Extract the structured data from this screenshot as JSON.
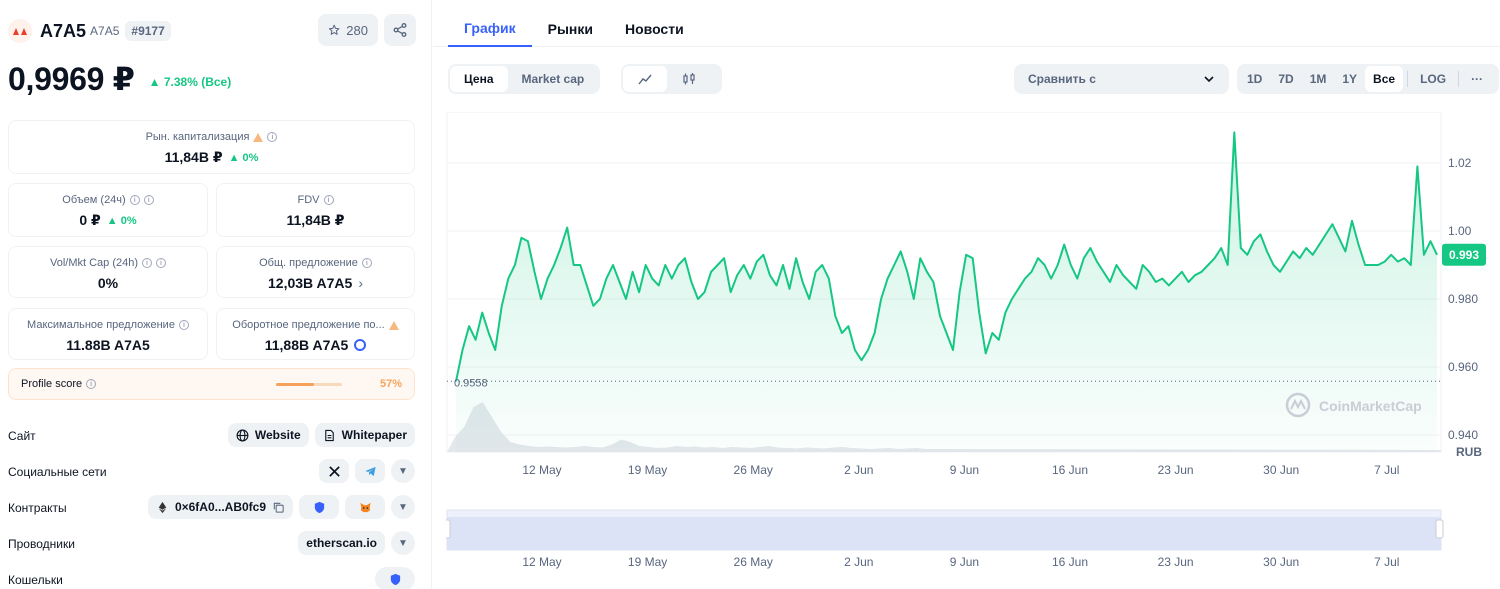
{
  "coin": {
    "name": "A7A5",
    "symbol": "A7A5",
    "rank": "#9177",
    "watch_count": "280",
    "price": "0,9969 ₽",
    "price_change": "7.38% (Все)"
  },
  "stats": {
    "market_cap": {
      "label": "Рын. капитализация",
      "value": "11,84B ₽",
      "change": "0%"
    },
    "volume": {
      "label": "Объем (24ч)",
      "value": "0 ₽",
      "change": "0%"
    },
    "fdv": {
      "label": "FDV",
      "value": "11,84B ₽"
    },
    "vol_mkt": {
      "label": "Vol/Mkt Cap (24h)",
      "value": "0%"
    },
    "total_supply": {
      "label": "Общ. предложение",
      "value": "12,03B A7A5"
    },
    "max_supply": {
      "label": "Максимальное предложение",
      "value": "11.88B A7A5"
    },
    "circulating": {
      "label": "Оборотное предложение по...",
      "value": "11,88B A7A5"
    }
  },
  "profile": {
    "label": "Profile score",
    "value": "57%",
    "fraction": 0.57
  },
  "links": {
    "site": {
      "label": "Сайт",
      "website": "Website",
      "whitepaper": "Whitepaper"
    },
    "social": {
      "label": "Социальные сети"
    },
    "contracts": {
      "label": "Контракты",
      "address": "0×6fA0...AB0fc9"
    },
    "explorers": {
      "label": "Проводники",
      "value": "etherscan.io"
    },
    "wallets": {
      "label": "Кошельки"
    }
  },
  "tabs": [
    "График",
    "Рынки",
    "Новости"
  ],
  "chart_toggle": {
    "price": "Цена",
    "market_cap": "Market cap"
  },
  "compare": {
    "placeholder": "Сравнить с"
  },
  "ranges": [
    "1D",
    "7D",
    "1M",
    "1Y",
    "Все",
    "LOG",
    "···"
  ],
  "watermark": "CoinMarketCap",
  "colors": {
    "accent": "#3861fb",
    "up": "#16c784",
    "line": "#16c784",
    "warning": "#f5a35c"
  },
  "chart_data": {
    "type": "line",
    "series": [
      {
        "values": [
          0.9558,
          0.965,
          0.972,
          0.968,
          0.976,
          0.97,
          0.965,
          0.978,
          0.986,
          0.99,
          0.998,
          0.997,
          0.988,
          0.98,
          0.986,
          0.99,
          0.995,
          1.001,
          0.99,
          0.99,
          0.984,
          0.978,
          0.98,
          0.986,
          0.99,
          0.985,
          0.98,
          0.988,
          0.982,
          0.99,
          0.986,
          0.984,
          0.99,
          0.986,
          0.99,
          0.992,
          0.985,
          0.98,
          0.982,
          0.988,
          0.99,
          0.992,
          0.982,
          0.987,
          0.99,
          0.986,
          0.991,
          0.993,
          0.987,
          0.984,
          0.99,
          0.983,
          0.992,
          0.985,
          0.98,
          0.988,
          0.99,
          0.986,
          0.975,
          0.97,
          0.972,
          0.965,
          0.962,
          0.965,
          0.97,
          0.98,
          0.986,
          0.99,
          0.994,
          0.988,
          0.98,
          0.992,
          0.988,
          0.985,
          0.975,
          0.97,
          0.965,
          0.982,
          0.993,
          0.992,
          0.976,
          0.964,
          0.97,
          0.968,
          0.976,
          0.98,
          0.983,
          0.986,
          0.988,
          0.992,
          0.99,
          0.986,
          0.99,
          0.996,
          0.99,
          0.986,
          0.992,
          0.995,
          0.991,
          0.988,
          0.985,
          0.99,
          0.987,
          0.985,
          0.983,
          0.99,
          0.988,
          0.985,
          0.986,
          0.984,
          0.986,
          0.988,
          0.985,
          0.987,
          0.988,
          0.99,
          0.992,
          0.995,
          0.99,
          1.029,
          0.995,
          0.993,
          0.997,
          0.999,
          0.994,
          0.99,
          0.988,
          0.991,
          0.994,
          0.992,
          0.995,
          0.993,
          0.996,
          0.999,
          1.002,
          0.998,
          0.994,
          1.003,
          0.996,
          0.99,
          0.99,
          0.99,
          0.991,
          0.993,
          0.991,
          0.992,
          0.99,
          1.019,
          0.993,
          0.997,
          0.993
        ]
      }
    ],
    "volume": [
      0.3,
      0.5,
      0.9,
      1.0,
      0.7,
      0.4,
      0.2,
      0.15,
      0.12,
      0.1,
      0.11,
      0.1,
      0.09,
      0.1,
      0.12,
      0.1,
      0.09,
      0.15,
      0.25,
      0.2,
      0.12,
      0.1,
      0.08,
      0.09,
      0.12,
      0.1,
      0.11,
      0.09,
      0.1,
      0.08,
      0.1,
      0.09,
      0.08,
      0.1,
      0.12,
      0.09,
      0.08,
      0.07,
      0.09,
      0.08,
      0.07,
      0.09,
      0.1,
      0.08,
      0.07,
      0.06,
      0.07,
      0.08,
      0.06,
      0.07,
      0.08,
      0.06
    ],
    "x_ticks": [
      "12 May",
      "19 May",
      "26 May",
      "2 Jun",
      "9 Jun",
      "16 Jun",
      "23 Jun",
      "30 Jun",
      "7 Jul"
    ],
    "y_ticks": [
      "1.02",
      "1.00",
      "0.980",
      "0.960",
      "0.940"
    ],
    "ylim": [
      0.935,
      1.035
    ],
    "current_value": "0.993",
    "low_marker": "0.9558",
    "unit": "RUB"
  }
}
